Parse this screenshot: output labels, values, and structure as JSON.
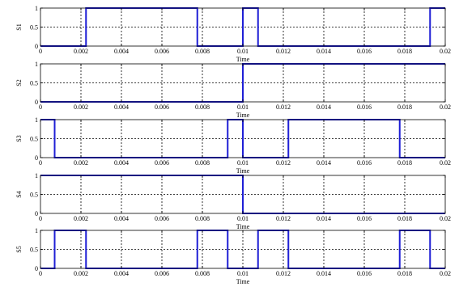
{
  "chart_data": [
    {
      "type": "line",
      "ylabel": "S1",
      "xlabel": "Time",
      "xlim": [
        0,
        0.02
      ],
      "ylim": [
        0,
        1
      ],
      "x_ticks": [
        "0",
        "0.002",
        "0.004",
        "0.006",
        "0.008",
        "0.01",
        "0.012",
        "0.014",
        "0.016",
        "0.018",
        "0.02"
      ],
      "y_ticks": [
        "0",
        "0.5",
        "1"
      ],
      "grid": true,
      "series": [
        {
          "color": "#1f1fd6",
          "x": [
            0,
            0.00225,
            0.00225,
            0.00775,
            0.00775,
            0.01,
            0.01,
            0.01075,
            0.01075,
            0.01925,
            0.01925,
            0.02
          ],
          "y": [
            0,
            0,
            1,
            1,
            0,
            0,
            1,
            1,
            0,
            0,
            1,
            1
          ]
        }
      ]
    },
    {
      "type": "line",
      "ylabel": "S2",
      "xlabel": "Time",
      "xlim": [
        0,
        0.02
      ],
      "ylim": [
        0,
        1
      ],
      "x_ticks": [
        "0",
        "0.002",
        "0.004",
        "0.006",
        "0.008",
        "0.01",
        "0.012",
        "0.014",
        "0.016",
        "0.018",
        "0.02"
      ],
      "y_ticks": [
        "0",
        "0.5",
        "1"
      ],
      "grid": true,
      "series": [
        {
          "color": "#1f1fd6",
          "x": [
            0,
            0.01,
            0.01,
            0.02
          ],
          "y": [
            0,
            0,
            1,
            1
          ]
        }
      ]
    },
    {
      "type": "line",
      "ylabel": "S3",
      "xlabel": "Time",
      "xlim": [
        0,
        0.02
      ],
      "ylim": [
        0,
        1
      ],
      "x_ticks": [
        "0",
        "0.002",
        "0.004",
        "0.006",
        "0.008",
        "0.01",
        "0.012",
        "0.014",
        "0.016",
        "0.018",
        "0.02"
      ],
      "y_ticks": [
        "0",
        "0.5",
        "1"
      ],
      "grid": true,
      "series": [
        {
          "color": "#1f1fd6",
          "x": [
            0,
            0.0007,
            0.0007,
            0.00925,
            0.00925,
            0.01,
            0.01,
            0.01225,
            0.01225,
            0.01775,
            0.01775,
            0.02
          ],
          "y": [
            1,
            1,
            0,
            0,
            1,
            1,
            0,
            0,
            1,
            1,
            0,
            0
          ]
        }
      ]
    },
    {
      "type": "line",
      "ylabel": "S4",
      "xlabel": "Time",
      "xlim": [
        0,
        0.02
      ],
      "ylim": [
        0,
        1
      ],
      "x_ticks": [
        "0",
        "0.002",
        "0.004",
        "0.006",
        "0.008",
        "0.01",
        "0.012",
        "0.014",
        "0.016",
        "0.018",
        "0.02"
      ],
      "y_ticks": [
        "0",
        "0.5",
        "1"
      ],
      "grid": true,
      "series": [
        {
          "color": "#1f1fd6",
          "x": [
            0,
            0.01,
            0.01,
            0.02
          ],
          "y": [
            1,
            1,
            0,
            0
          ]
        }
      ]
    },
    {
      "type": "line",
      "ylabel": "S5",
      "xlabel": "Time",
      "xlim": [
        0,
        0.02
      ],
      "ylim": [
        0,
        1
      ],
      "x_ticks": [
        "0",
        "0.002",
        "0.004",
        "0.006",
        "0.008",
        "0.01",
        "0.012",
        "0.014",
        "0.016",
        "0.018",
        "0.02"
      ],
      "y_ticks": [
        "0",
        "0.5",
        "1"
      ],
      "grid": true,
      "series": [
        {
          "color": "#1f1fd6",
          "x": [
            0,
            0.0007,
            0.0007,
            0.00225,
            0.00225,
            0.00775,
            0.00775,
            0.00925,
            0.00925,
            0.01075,
            0.01075,
            0.01225,
            0.01225,
            0.01775,
            0.01775,
            0.01925,
            0.01925,
            0.02
          ],
          "y": [
            0,
            0,
            1,
            1,
            0,
            0,
            1,
            1,
            0,
            0,
            1,
            1,
            0,
            0,
            1,
            1,
            0,
            0
          ]
        }
      ]
    }
  ]
}
